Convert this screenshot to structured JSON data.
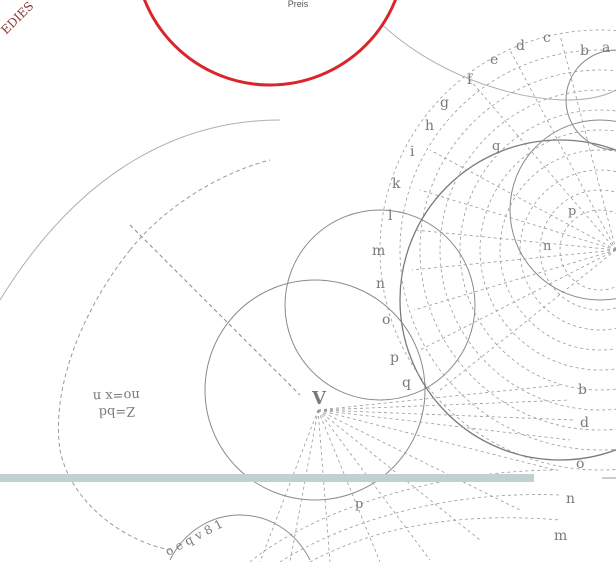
{
  "badge": {
    "caption": "Preis",
    "stamp_text": "EDIES"
  },
  "diagram": {
    "outer_letters_top": [
      "b",
      "a",
      "c",
      "d",
      "e",
      "f",
      "g",
      "h",
      "i",
      "k",
      "l",
      "m",
      "n",
      "o",
      "p",
      "q"
    ],
    "outer_letters_bottom": [
      "b",
      "d",
      "o",
      "n",
      "m"
    ],
    "center_point": "V",
    "interior_labels": [
      "q",
      "p",
      "n",
      "p"
    ],
    "formula_line_1": "Z=bd",
    "formula_line_2": "no=x n",
    "bottom_glyphs": "o e q v 8 1"
  },
  "colors": {
    "badge_ring": "#d9252b",
    "rule_bar": "#bfd2cf",
    "ink": "#8a8a8a",
    "stamp": "#8a3a3a"
  }
}
